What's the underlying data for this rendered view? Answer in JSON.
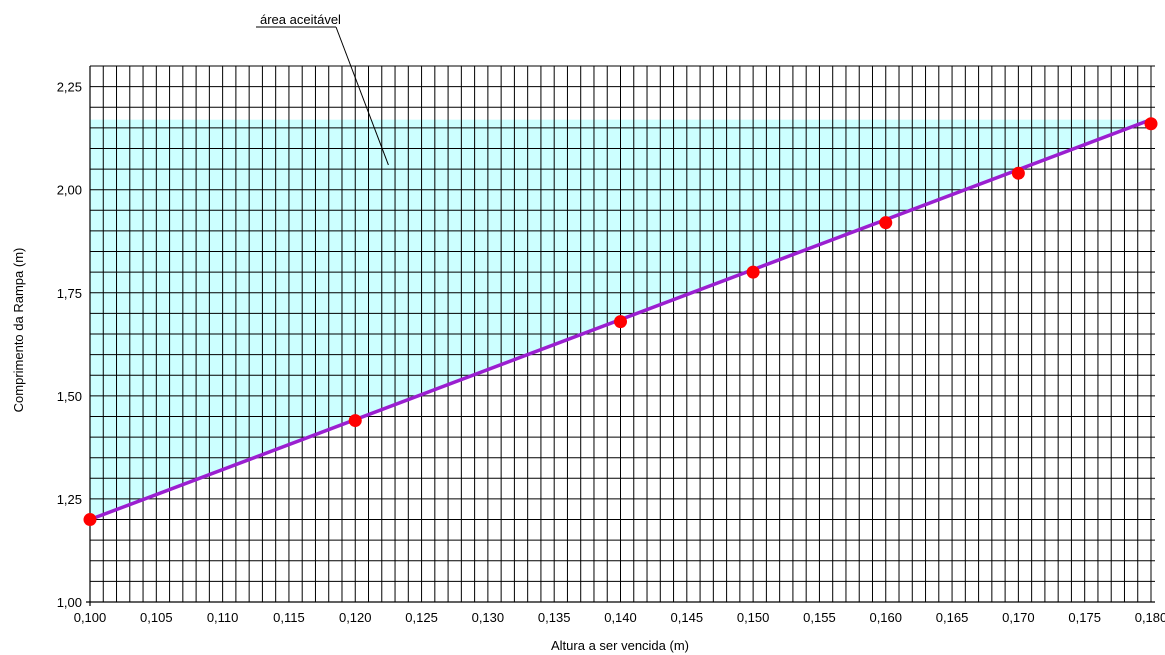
{
  "chart_data": {
    "type": "line",
    "xlabel": "Altura a ser vencida (m)",
    "ylabel": "Comprimento da Rampa (m)",
    "xlim": [
      0.1,
      0.18
    ],
    "ylim": [
      1.0,
      2.3
    ],
    "x_ticks": [
      "0,100",
      "0,105",
      "0,110",
      "0,115",
      "0,120",
      "0,125",
      "0,130",
      "0,135",
      "0,140",
      "0,145",
      "0,150",
      "0,155",
      "0,160",
      "0,165",
      "0,170",
      "0,175",
      "0,180"
    ],
    "y_ticks": [
      "1,00",
      "1,25",
      "1,50",
      "1,75",
      "2,00",
      "2,25"
    ],
    "grid": true,
    "series": [
      {
        "x": [
          0.1,
          0.18
        ],
        "y": [
          1.2,
          2.17
        ],
        "color": "#9b1fd0"
      }
    ],
    "points": {
      "x": [
        0.1,
        0.12,
        0.14,
        0.15,
        0.16,
        0.17,
        0.18
      ],
      "y": [
        1.2,
        1.44,
        1.68,
        1.8,
        1.92,
        2.04,
        2.16
      ],
      "color": "#ff0000"
    },
    "shaded_region": {
      "color": "#ccffff",
      "y_top": 2.17
    },
    "annotation": {
      "text": "área aceitável",
      "x": 0.1225,
      "y": 2.06
    }
  }
}
